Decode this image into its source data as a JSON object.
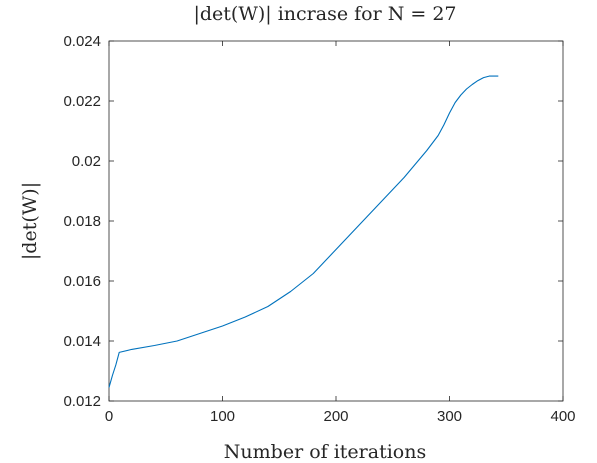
{
  "chart_data": {
    "type": "line",
    "title": "|det(W)| incrase for N = 27",
    "xlabel": "Number of iterations",
    "ylabel": "|det(W)|",
    "xlim": [
      0,
      400
    ],
    "ylim": [
      0.012,
      0.024
    ],
    "xticks": [
      0,
      100,
      200,
      300,
      400
    ],
    "xtick_labels": [
      "0",
      "100",
      "200",
      "300",
      "400"
    ],
    "yticks": [
      0.012,
      0.014,
      0.016,
      0.018,
      0.02,
      0.022,
      0.024
    ],
    "ytick_labels": [
      "0.012",
      "0.014",
      "0.016",
      "0.018",
      "0.02",
      "0.022",
      "0.024"
    ],
    "grid": false,
    "legend": "none",
    "series": [
      {
        "color": "#0072BD",
        "x": [
          0,
          3,
          6,
          9,
          20,
          40,
          60,
          80,
          100,
          120,
          140,
          160,
          180,
          200,
          220,
          240,
          260,
          280,
          290,
          295,
          300,
          305,
          310,
          315,
          320,
          325,
          330,
          335,
          340,
          343
        ],
        "y": [
          0.01245,
          0.01285,
          0.0132,
          0.01362,
          0.01372,
          0.01385,
          0.014,
          0.01425,
          0.0145,
          0.0148,
          0.01515,
          0.01565,
          0.01625,
          0.01705,
          0.01785,
          0.01865,
          0.01945,
          0.02035,
          0.02085,
          0.0212,
          0.0216,
          0.02195,
          0.0222,
          0.0224,
          0.02255,
          0.02268,
          0.02278,
          0.02283,
          0.02283,
          0.02283
        ]
      }
    ]
  }
}
